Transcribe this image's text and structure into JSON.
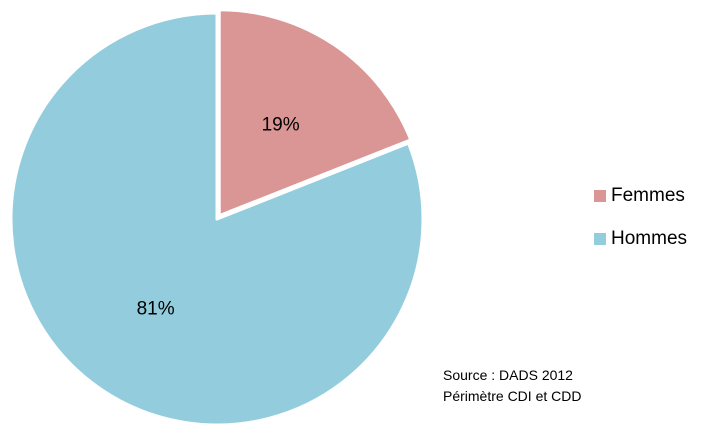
{
  "chart_data": {
    "type": "pie",
    "title": "",
    "categories": [
      "Femmes",
      "Hommes"
    ],
    "values": [
      19,
      81
    ],
    "labels": [
      "19%",
      "81%"
    ],
    "colors": [
      "#d99694",
      "#93cddd"
    ],
    "start_angle_deg": 0,
    "direction": "clockwise",
    "exploded": "Femmes",
    "legend_position": "right"
  },
  "legend": [
    {
      "label": "Femmes",
      "color": "#d99694"
    },
    {
      "label": "Hommes",
      "color": "#93cddd"
    }
  ],
  "source": {
    "line1": "Source : DADS 2012",
    "line2": "Périmètre CDI et CDD"
  }
}
